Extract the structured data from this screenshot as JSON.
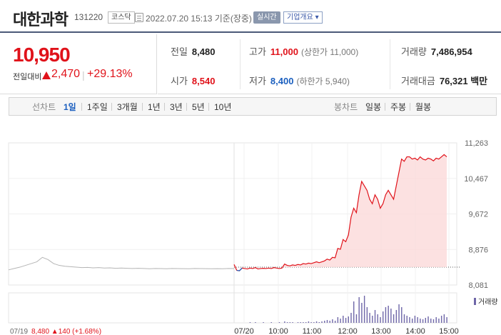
{
  "header": {
    "name": "대한과학",
    "code": "131220",
    "market": "코스닥",
    "timestamp": "2022.07.20 15:13 기준(장중)",
    "realtime_label": "실시간",
    "company_label": "기업개요 ▾"
  },
  "price": {
    "current": "10,950",
    "prev_label": "전일대비",
    "change": "2,470",
    "separator": "|",
    "change_pct": "+29.13%",
    "up_color": "#e0121a"
  },
  "stats": {
    "prev_close": {
      "label": "전일",
      "value": "8,480"
    },
    "high": {
      "label": "고가",
      "value": "11,000",
      "limit": "(상한가 11,000)"
    },
    "volume": {
      "label": "거래량",
      "value": "7,486,954"
    },
    "open": {
      "label": "시가",
      "value": "8,540"
    },
    "low": {
      "label": "저가",
      "value": "8,400",
      "limit": "(하한가 5,940)"
    },
    "amount": {
      "label": "거래대금",
      "value": "76,321 백만"
    }
  },
  "tabs": {
    "line_label": "선차트",
    "line_periods": [
      "1일",
      "1주일",
      "3개월",
      "1년",
      "3년",
      "5년",
      "10년"
    ],
    "active": "1일",
    "candle_label": "봉차트",
    "candle_periods": [
      "일봉",
      "주봉",
      "월봉"
    ]
  },
  "chart_data": {
    "type": "line",
    "y_ticks": [
      "11,263",
      "10,467",
      "9,672",
      "8,876",
      "8,081"
    ],
    "ylim": [
      8081,
      11263
    ],
    "prev_close": 8480,
    "x_labels": [
      "07/20",
      "10:00",
      "11:00",
      "12:00",
      "13:00",
      "14:00",
      "15:00"
    ],
    "footer_label": "07/19 8,480 ▲140 (+1.68%)",
    "volume_label": "거래량",
    "colors": {
      "prev_day": "#b5b5b5",
      "up": "#e0121a",
      "down": "#1b5fbf",
      "fill": "#fbd9da",
      "volume": "#6e66a8"
    },
    "prev_day_series": [
      8420,
      8450,
      8480,
      8520,
      8560,
      8600,
      8700,
      8650,
      8560,
      8520,
      8500,
      8490,
      8480,
      8470,
      8475,
      8465,
      8470,
      8460,
      8465,
      8455,
      8460,
      8455,
      8450,
      8455,
      8450,
      8445,
      8450,
      8448,
      8445,
      8450,
      8448,
      8447,
      8445,
      8450,
      8448,
      8446,
      8445,
      8447,
      8445,
      8450,
      8448
    ],
    "today_series": [
      8540,
      8410,
      8400,
      8460,
      8450,
      8440,
      8460,
      8450,
      8470,
      8440,
      8450,
      8455,
      8450,
      8460,
      8450,
      8470,
      8460,
      8450,
      8460,
      8550,
      8520,
      8510,
      8530,
      8520,
      8540,
      8530,
      8560,
      8550,
      8570,
      8560,
      8580,
      8600,
      8580,
      8600,
      8620,
      8660,
      8640,
      8700,
      8690,
      8900,
      8880,
      9100,
      9050,
      9200,
      9600,
      9800,
      9700,
      10100,
      10400,
      10300,
      10200,
      10000,
      9900,
      10100,
      10000,
      9800,
      9900,
      10100,
      10200,
      10100,
      10000,
      10300,
      10600,
      10900,
      10850,
      10950,
      10950,
      10900,
      10920,
      10880,
      10950,
      10900,
      10880,
      10920,
      10900,
      10860,
      10920,
      10900,
      10950,
      11000,
      10950
    ],
    "volume_series": [
      0,
      0,
      0,
      0,
      0,
      0,
      1,
      0,
      1,
      0,
      0,
      1,
      0,
      0,
      1,
      0,
      0,
      1,
      0,
      2,
      1,
      1,
      1,
      0,
      1,
      1,
      1,
      1,
      2,
      1,
      1,
      2,
      1,
      2,
      3,
      4,
      3,
      5,
      3,
      8,
      6,
      10,
      7,
      9,
      14,
      30,
      12,
      36,
      28,
      38,
      22,
      14,
      10,
      18,
      12,
      8,
      16,
      22,
      24,
      20,
      12,
      18,
      26,
      22,
      12,
      10,
      8,
      6,
      10,
      8,
      6,
      5,
      7,
      9,
      6,
      5,
      8,
      6,
      10,
      12,
      8
    ]
  }
}
